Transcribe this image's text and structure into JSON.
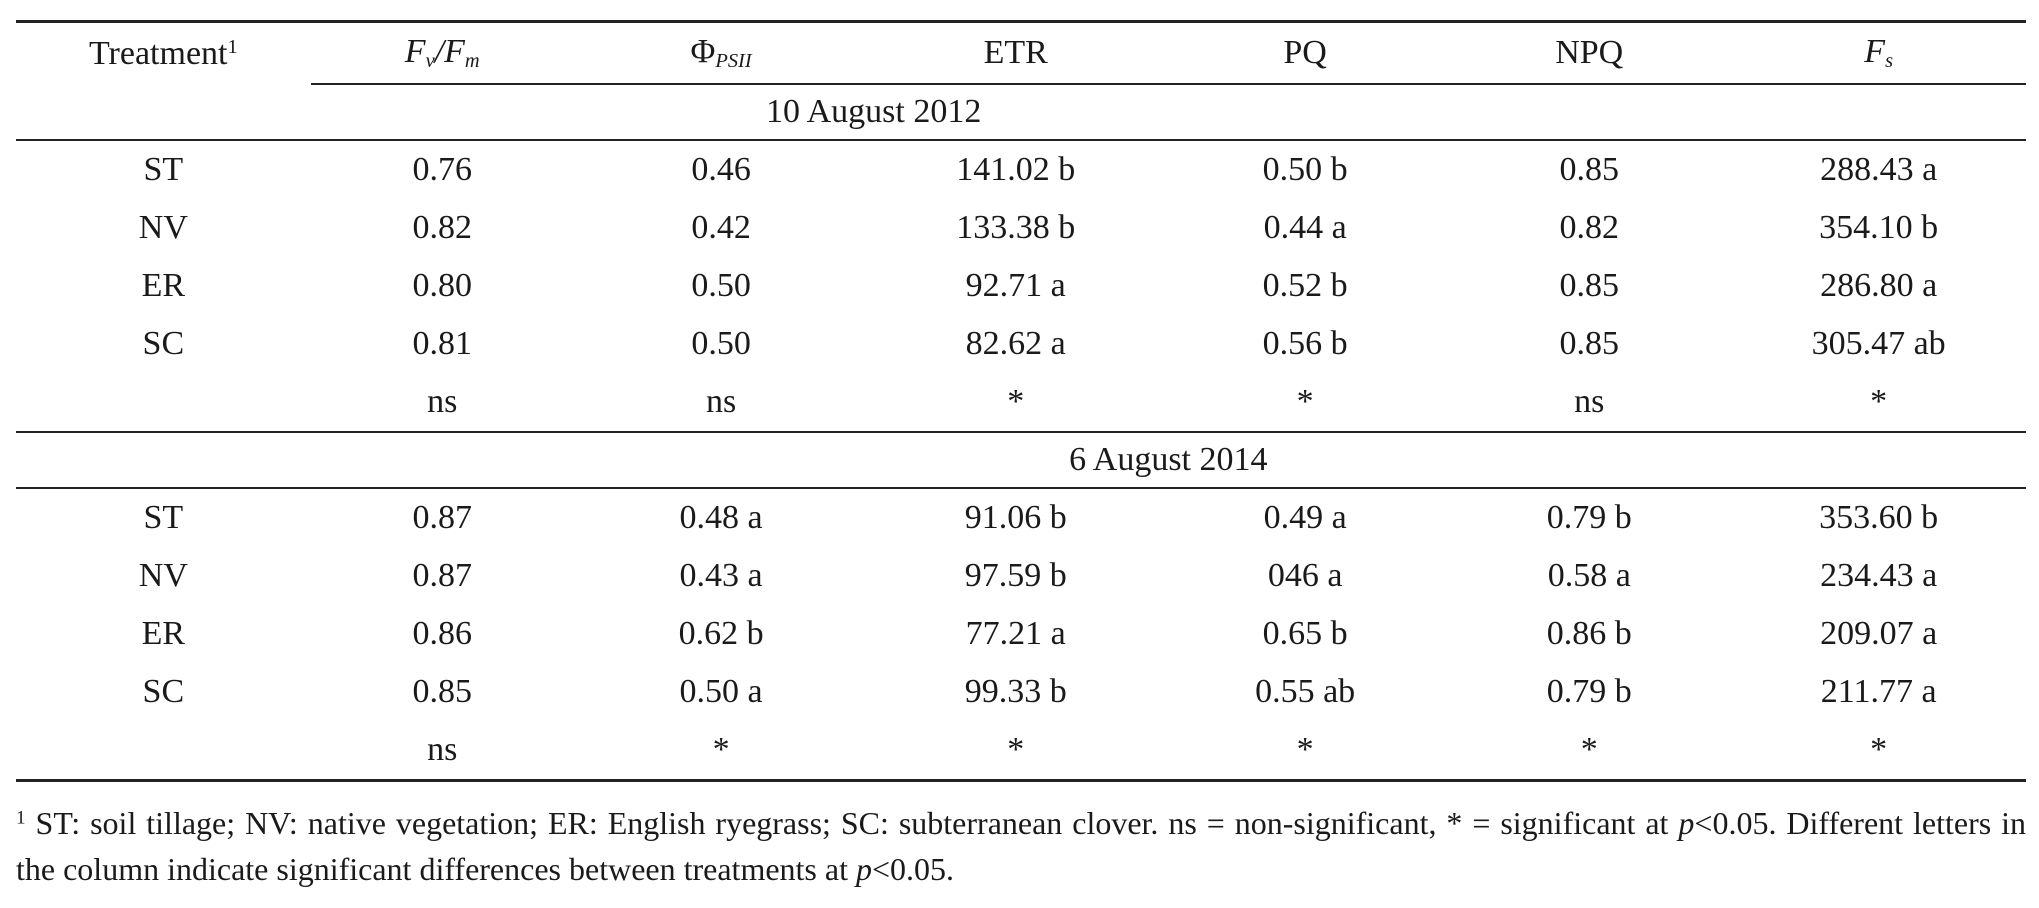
{
  "table": {
    "headers": {
      "treatment": "Treatment",
      "treatment_mark": "1",
      "fvfm_fv": "F",
      "fvfm_fv_sub": "v",
      "fvfm_slash": "/",
      "fvfm_fm": "F",
      "fvfm_fm_sub": "m",
      "phi": "Φ",
      "phi_sub": "PSII",
      "etr": "ETR",
      "pq": "PQ",
      "npq": "NPQ",
      "fs": "F",
      "fs_sub": "s"
    },
    "sections": [
      {
        "date": "10 August 2012",
        "rows": [
          [
            "ST",
            "0.76",
            "0.46",
            "141.02 b",
            "0.50 b",
            "0.85",
            "288.43 a"
          ],
          [
            "NV",
            "0.82",
            "0.42",
            "133.38 b",
            "0.44 a",
            "0.82",
            "354.10 b"
          ],
          [
            "ER",
            "0.80",
            "0.50",
            "92.71 a",
            "0.52 b",
            "0.85",
            "286.80 a"
          ],
          [
            "SC",
            "0.81",
            "0.50",
            "82.62 a",
            "0.56 b",
            "0.85",
            "305.47 ab"
          ]
        ],
        "significance": [
          "",
          "ns",
          "ns",
          "*",
          "*",
          "ns",
          "*"
        ]
      },
      {
        "date": "6 August 2014",
        "rows": [
          [
            "ST",
            "0.87",
            "0.48 a",
            "91.06 b",
            "0.49 a",
            "0.79 b",
            "353.60 b"
          ],
          [
            "NV",
            "0.87",
            "0.43 a",
            "97.59 b",
            "046 a",
            "0.58 a",
            "234.43 a"
          ],
          [
            "ER",
            "0.86",
            "0.62 b",
            "77.21 a",
            "0.65 b",
            "0.86 b",
            "209.07 a"
          ],
          [
            "SC",
            "0.85",
            "0.50 a",
            "99.33 b",
            "0.55 ab",
            "0.79 b",
            "211.77 a"
          ]
        ],
        "significance": [
          "",
          "ns",
          "*",
          "*",
          "*",
          "*",
          "*"
        ]
      }
    ]
  },
  "footnote": {
    "mark": "1",
    "text_1": " ST: soil tillage; NV: native vegetation; ER: English ryegrass; SC: subterranean clover. ns = non-significant, * = significant at ",
    "p1": "p",
    "text_2": "<0.05. Different letters in the column indicate significant differences between treatments at ",
    "p2": "p",
    "text_3": "<0.05."
  }
}
